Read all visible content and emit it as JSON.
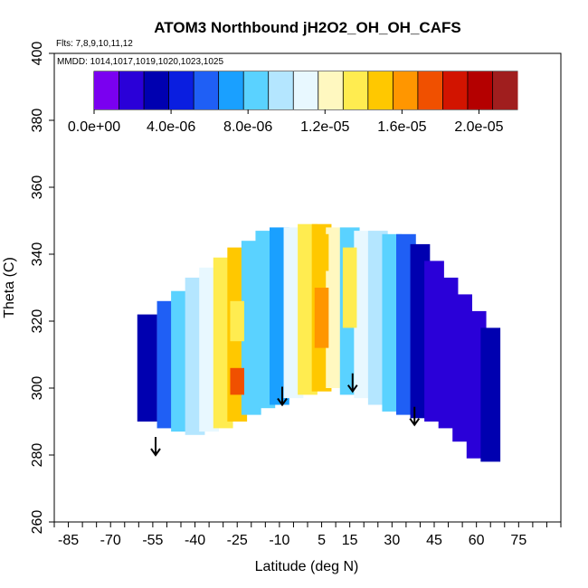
{
  "chart_data": {
    "type": "heatmap",
    "title": "ATOM3 Northbound jH2O2_OH_OH_CAFS",
    "flights_note": "Flts: 7,8,9,10,11,12",
    "dates_note": "MMDD: 1014,1017,1019,1020,1023,1025",
    "xlabel": "Latitude (deg N)",
    "ylabel": "Theta (C)",
    "xlim": [
      -90,
      90
    ],
    "ylim": [
      260,
      400
    ],
    "x_tick_labels": [
      "-85",
      "-70",
      "-55",
      "-40",
      "-25",
      "-10",
      "5",
      "15",
      "30",
      "45",
      "60",
      "75"
    ],
    "x_tick_values": [
      -85,
      -70,
      -55,
      -40,
      -25,
      -10,
      5,
      15,
      30,
      45,
      60,
      75
    ],
    "y_tick_labels": [
      "260",
      "280",
      "300",
      "320",
      "340",
      "360",
      "380",
      "400"
    ],
    "y_tick_values": [
      260,
      280,
      300,
      320,
      340,
      360,
      380,
      400
    ],
    "colorbar": {
      "tick_labels": [
        "0.0e+00",
        "4.0e-06",
        "8.0e-06",
        "1.2e-05",
        "1.6e-05",
        "2.0e-05"
      ],
      "tick_values": [
        0,
        4e-06,
        8e-06,
        1.2e-05,
        1.6e-05,
        2e-05
      ],
      "range": [
        0,
        2.2e-05
      ],
      "colors": [
        "#7a00f0",
        "#2a00d8",
        "#0000b0",
        "#0a1ee0",
        "#1f5ff5",
        "#1aa0ff",
        "#5ad2ff",
        "#b4e6ff",
        "#e8f8ff",
        "#fff8c0",
        "#ffec50",
        "#ffc800",
        "#ff9600",
        "#f05000",
        "#d21400",
        "#b40000",
        "#a01e1e"
      ]
    },
    "latitude_bands": [
      {
        "lat": -57,
        "theta_min": 290,
        "theta_max": 322,
        "value": 3.5e-06
      },
      {
        "lat": -50,
        "theta_min": 288,
        "theta_max": 326,
        "value": 6e-06
      },
      {
        "lat": -45,
        "theta_min": 287,
        "theta_max": 329,
        "value": 8.5e-06
      },
      {
        "lat": -40,
        "theta_min": 286,
        "theta_max": 333,
        "value": 1e-05
      },
      {
        "lat": -35,
        "theta_min": 287,
        "theta_max": 336,
        "value": 1.1e-05
      },
      {
        "lat": -30,
        "theta_min": 288,
        "theta_max": 339,
        "value": 1.3e-05
      },
      {
        "lat": -25,
        "theta_min": 290,
        "theta_max": 342,
        "value": 1.5e-05
      },
      {
        "lat": -20,
        "theta_min": 292,
        "theta_max": 344,
        "value": 9e-06
      },
      {
        "lat": -15,
        "theta_min": 294,
        "theta_max": 347,
        "value": 8e-06
      },
      {
        "lat": -10,
        "theta_min": 295,
        "theta_max": 348,
        "value": 6.5e-06
      },
      {
        "lat": -5,
        "theta_min": 297,
        "theta_max": 348,
        "value": 1.1e-05
      },
      {
        "lat": 0,
        "theta_min": 298,
        "theta_max": 349,
        "value": 1.35e-05
      },
      {
        "lat": 5,
        "theta_min": 299,
        "theta_max": 349,
        "value": 1.5e-05
      },
      {
        "lat": 10,
        "theta_min": 300,
        "theta_max": 348,
        "value": 1.2e-05
      },
      {
        "lat": 15,
        "theta_min": 298,
        "theta_max": 348,
        "value": 9e-06
      },
      {
        "lat": 20,
        "theta_min": 297,
        "theta_max": 347,
        "value": 1.1e-05
      },
      {
        "lat": 25,
        "theta_min": 295,
        "theta_max": 347,
        "value": 9.5e-06
      },
      {
        "lat": 30,
        "theta_min": 293,
        "theta_max": 346,
        "value": 8e-06
      },
      {
        "lat": 35,
        "theta_min": 292,
        "theta_max": 346,
        "value": 6e-06
      },
      {
        "lat": 40,
        "theta_min": 291,
        "theta_max": 343,
        "value": 3.5e-06
      },
      {
        "lat": 45,
        "theta_min": 290,
        "theta_max": 338,
        "value": 2.5e-06
      },
      {
        "lat": 50,
        "theta_min": 288,
        "theta_max": 333,
        "value": 2e-06
      },
      {
        "lat": 55,
        "theta_min": 284,
        "theta_max": 328,
        "value": 2e-06
      },
      {
        "lat": 60,
        "theta_min": 279,
        "theta_max": 323,
        "value": 2.5e-06
      },
      {
        "lat": 65,
        "theta_min": 278,
        "theta_max": 318,
        "value": 3e-06
      }
    ],
    "hotspots": [
      {
        "lat": -25,
        "theta_min": 298,
        "theta_max": 306,
        "value": 1.7e-05
      },
      {
        "lat": 5,
        "theta_min": 312,
        "theta_max": 330,
        "value": 1.6e-05
      },
      {
        "lat": 5,
        "theta_min": 335,
        "theta_max": 346,
        "value": 1.5e-05
      },
      {
        "lat": -25,
        "theta_min": 314,
        "theta_max": 326,
        "value": 1.35e-05
      },
      {
        "lat": 15,
        "theta_min": 318,
        "theta_max": 342,
        "value": 1.3e-05
      }
    ],
    "arrows": [
      {
        "lat": -54,
        "theta": 280
      },
      {
        "lat": -9,
        "theta": 295
      },
      {
        "lat": 16,
        "theta": 299
      },
      {
        "lat": 38,
        "theta": 289
      }
    ]
  }
}
